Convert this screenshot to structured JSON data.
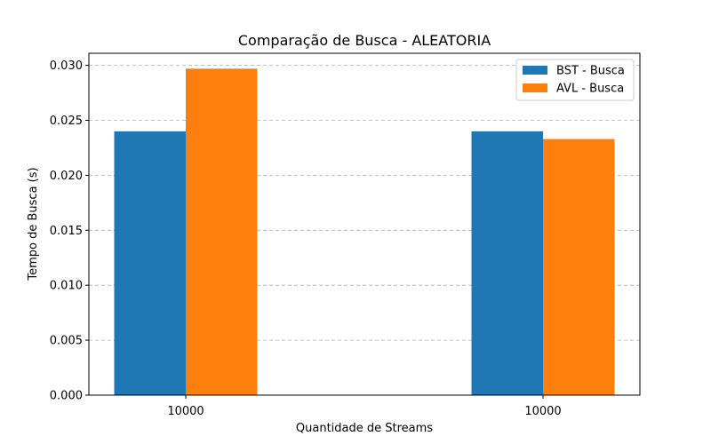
{
  "chart_data": {
    "type": "bar",
    "title": "Comparação de Busca - ALEATORIA",
    "xlabel": "Quantidade de Streams",
    "ylabel": "Tempo de Busca (s)",
    "categories": [
      "10000",
      "10000"
    ],
    "series": [
      {
        "name": "BST - Busca",
        "color": "#1f77b4",
        "values": [
          0.024,
          0.024
        ]
      },
      {
        "name": "AVL - Busca",
        "color": "#ff7f0e",
        "values": [
          0.0297,
          0.0233
        ]
      }
    ],
    "ylim": [
      0,
      0.0311
    ],
    "yticks": [
      "0.000",
      "0.005",
      "0.010",
      "0.015",
      "0.020",
      "0.025",
      "0.030"
    ],
    "grid": "y-dashed",
    "legend": "top-right"
  }
}
